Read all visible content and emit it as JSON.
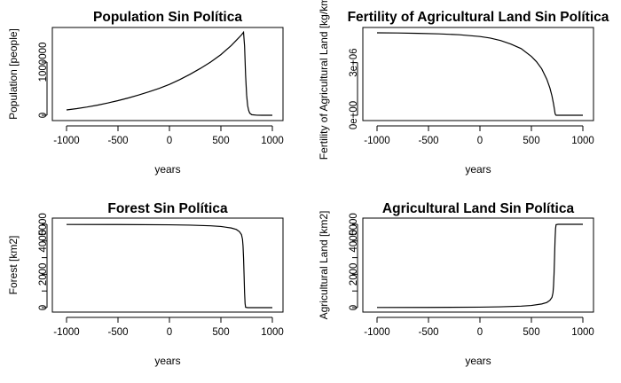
{
  "chart_data": [
    {
      "type": "line",
      "title": "Population Sin Política",
      "xlabel": "years",
      "ylabel": "Population [people]",
      "xlim": [
        -1000,
        1000
      ],
      "xticks": [
        -1000,
        -500,
        0,
        500,
        1000
      ],
      "ylim": [
        0,
        1550000
      ],
      "yticks": [
        0,
        1000000
      ],
      "ytick_labels": [
        "0",
        "1000000"
      ],
      "grid": false,
      "x": [
        -1000,
        -900,
        -800,
        -700,
        -600,
        -500,
        -400,
        -300,
        -200,
        -100,
        0,
        100,
        200,
        300,
        400,
        500,
        600,
        650,
        700,
        720,
        730,
        740,
        750,
        760,
        770,
        780,
        800,
        850,
        900,
        1000
      ],
      "y": [
        100000,
        125000,
        155000,
        190000,
        230000,
        275000,
        325000,
        380000,
        440000,
        505000,
        580000,
        670000,
        770000,
        880000,
        1000000,
        1140000,
        1310000,
        1410000,
        1510000,
        1560000,
        1300000,
        750000,
        380000,
        180000,
        90000,
        40000,
        10000,
        1000,
        0,
        0
      ]
    },
    {
      "type": "line",
      "title": "Fertility of Agricultural Land Sin Política",
      "xlabel": "years",
      "ylabel": "Fertility of Agricultural Land [kg/km2]",
      "xlim": [
        -1000,
        1000
      ],
      "xticks": [
        -1000,
        -500,
        0,
        500,
        1000
      ],
      "ylim": [
        0,
        4700000
      ],
      "yticks": [
        0,
        3000000
      ],
      "ytick_labels": [
        "0e+00",
        "3e+06"
      ],
      "grid": false,
      "x": [
        -1000,
        -800,
        -600,
        -400,
        -200,
        0,
        100,
        200,
        300,
        400,
        500,
        550,
        600,
        650,
        680,
        700,
        715,
        725,
        730,
        735,
        740,
        800,
        1000
      ],
      "y": [
        4700000,
        4690000,
        4670000,
        4640000,
        4590000,
        4490000,
        4400000,
        4260000,
        4060000,
        3800000,
        3350000,
        3050000,
        2650000,
        2050000,
        1550000,
        1100000,
        650000,
        300000,
        100000,
        30000,
        0,
        0,
        0
      ]
    },
    {
      "type": "line",
      "title": "Forest Sin Política",
      "xlabel": "years",
      "ylabel": "Forest [km2]",
      "xlim": [
        -1000,
        1000
      ],
      "xticks": [
        -1000,
        -500,
        0,
        500,
        1000
      ],
      "ylim": [
        0,
        5000
      ],
      "yticks": [
        0,
        1000,
        2000,
        3000,
        4000,
        5000
      ],
      "ytick_labels": [
        "0",
        "",
        "2000",
        "",
        "4000",
        "5000"
      ],
      "grid": false,
      "x": [
        -1000,
        -500,
        0,
        200,
        400,
        500,
        600,
        650,
        680,
        700,
        710,
        715,
        720,
        725,
        730,
        735,
        740,
        760,
        1000
      ],
      "y": [
        4990,
        4985,
        4970,
        4950,
        4910,
        4870,
        4780,
        4690,
        4560,
        4380,
        4100,
        3700,
        3000,
        2000,
        900,
        250,
        20,
        0,
        0
      ]
    },
    {
      "type": "line",
      "title": "Agricultural Land Sin Política",
      "xlabel": "years",
      "ylabel": "Agricultural Land [km2]",
      "xlim": [
        -1000,
        1000
      ],
      "xticks": [
        -1000,
        -500,
        0,
        500,
        1000
      ],
      "ylim": [
        0,
        5000
      ],
      "yticks": [
        0,
        1000,
        2000,
        3000,
        4000,
        5000
      ],
      "ytick_labels": [
        "0",
        "",
        "2000",
        "",
        "4000",
        "5000"
      ],
      "grid": false,
      "x": [
        -1000,
        -500,
        0,
        200,
        400,
        500,
        600,
        650,
        680,
        700,
        710,
        715,
        720,
        725,
        730,
        735,
        740,
        760,
        1000
      ],
      "y": [
        10,
        15,
        30,
        50,
        90,
        130,
        220,
        310,
        440,
        620,
        900,
        1300,
        2000,
        3000,
        4100,
        4750,
        4980,
        5000,
        5000
      ]
    }
  ]
}
